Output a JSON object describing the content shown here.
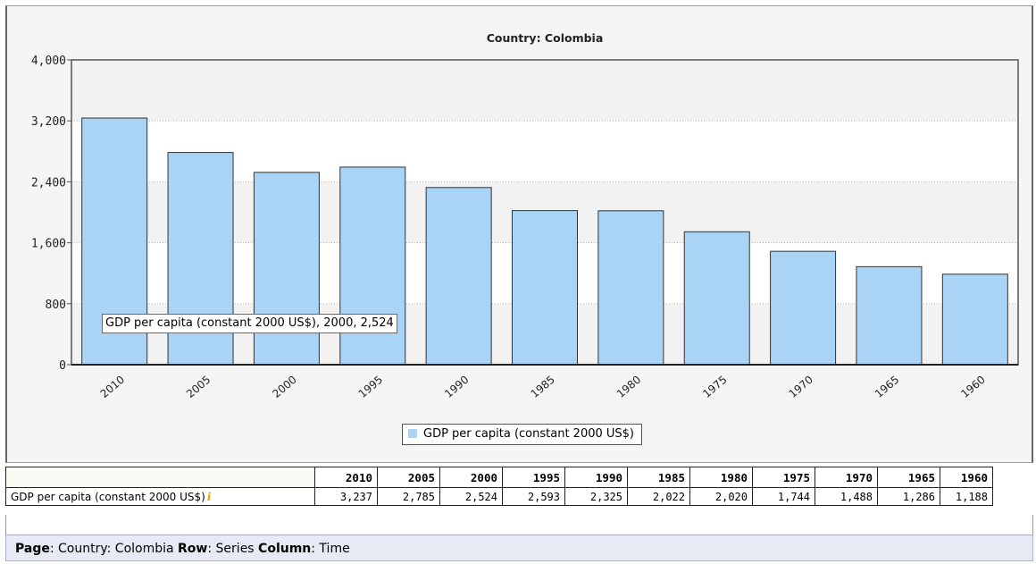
{
  "chart_data": {
    "type": "bar",
    "title": "Country: Colombia",
    "categories": [
      "2010",
      "2005",
      "2000",
      "1995",
      "1990",
      "1985",
      "1980",
      "1975",
      "1970",
      "1965",
      "1960"
    ],
    "series": [
      {
        "name": "GDP per capita (constant 2000 US$)",
        "values": [
          3237,
          2785,
          2524,
          2593,
          2325,
          2022,
          2020,
          1744,
          1488,
          1286,
          1188
        ]
      }
    ],
    "ylim": [
      0,
      4000
    ],
    "yticks": [
      "0",
      "800",
      "1,600",
      "2,400",
      "3,200",
      "4,000"
    ],
    "ytick_values": [
      0,
      800,
      1600,
      2400,
      3200,
      4000
    ],
    "bar_color": "#a9d4f5",
    "grid": true,
    "legend": "bottom-center"
  },
  "tooltip": "GDP per capita (constant 2000 US$), 2000, 2,524",
  "legend_label": "GDP per capita (constant 2000 US$)",
  "table": {
    "headers": [
      "2010",
      "2005",
      "2000",
      "1995",
      "1990",
      "1985",
      "1980",
      "1975",
      "1970",
      "1965",
      "1960"
    ],
    "row_label": "GDP per capita (constant 2000 US$)",
    "info_icon": "i",
    "values": [
      "3,237",
      "2,785",
      "2,524",
      "2,593",
      "2,325",
      "2,022",
      "2,020",
      "1,744",
      "1,488",
      "1,286",
      "1,188"
    ]
  },
  "footer": {
    "page_label": "Page",
    "page_value": ": Country: Colombia ",
    "row_label": "Row",
    "row_value": ": Series ",
    "column_label": "Column",
    "column_value": ": Time"
  }
}
